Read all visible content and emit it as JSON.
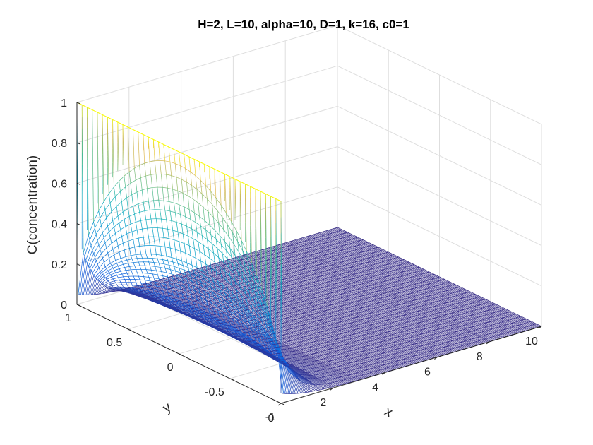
{
  "chart_data": {
    "type": "surface-mesh",
    "title": "H=2, L=10, alpha=10, D=1, k=16, c0=1",
    "xlabel": "x",
    "ylabel": "y",
    "zlabel": "C(concentration)",
    "xlim": [
      0,
      10
    ],
    "ylim": [
      -1,
      1
    ],
    "zlim": [
      0,
      1
    ],
    "x_ticks": [
      0,
      2,
      4,
      6,
      8,
      10
    ],
    "y_ticks": [
      -1,
      -0.5,
      0,
      0.5,
      1
    ],
    "z_ticks": [
      0,
      0.2,
      0.4,
      0.6,
      0.8,
      1
    ],
    "x_tick_labels": [
      "0",
      "2",
      "4",
      "6",
      "8",
      "10"
    ],
    "y_tick_labels": [
      "-1",
      "-0.5",
      "0",
      "0.5",
      "1"
    ],
    "z_tick_labels": [
      "0",
      "0.2",
      "0.4",
      "0.6",
      "0.8",
      "1"
    ],
    "grid": true,
    "colormap": "parula",
    "surface": {
      "description": "C(x,y) = 1 at x=0 inlet across all y; decays rapidly in x, near zero for x > 2",
      "boundary_x0_value": 1,
      "centerline_samples": [
        {
          "x": 0,
          "c": 1.0
        },
        {
          "x": 0.2,
          "c": 0.72
        },
        {
          "x": 0.5,
          "c": 0.42
        },
        {
          "x": 1.0,
          "c": 0.17
        },
        {
          "x": 1.5,
          "c": 0.06
        },
        {
          "x": 2.0,
          "c": 0.02
        },
        {
          "x": 3.0,
          "c": 0.0
        },
        {
          "x": 10.0,
          "c": 0.0
        }
      ],
      "edge_value_y_pm1": 0.05
    }
  }
}
